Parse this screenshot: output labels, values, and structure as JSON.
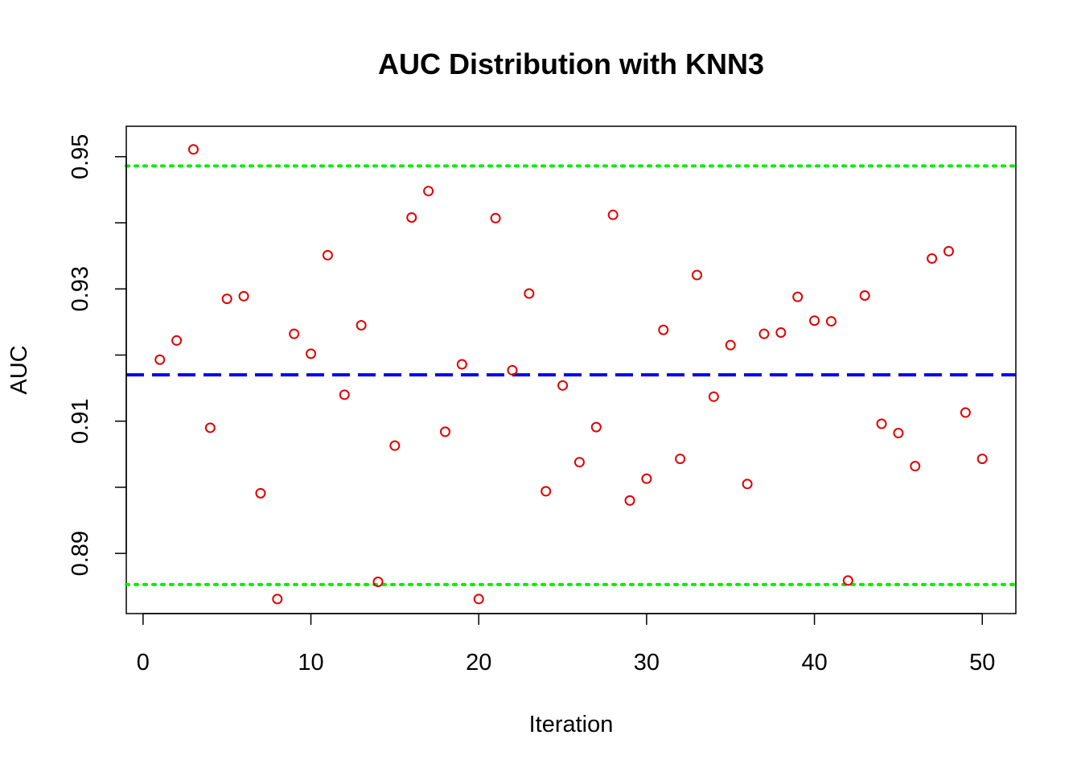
{
  "chart_data": {
    "type": "scatter",
    "title": "AUC Distribution with KNN3",
    "xlabel": "Iteration",
    "ylabel": "AUC",
    "xlim": [
      -1,
      52
    ],
    "ylim": [
      0.8809,
      0.9546
    ],
    "x_ticks": [
      0,
      10,
      20,
      30,
      40,
      50
    ],
    "x_tick_labels": [
      "0",
      "10",
      "20",
      "30",
      "40",
      "50"
    ],
    "y_ticks": [
      0.89,
      0.9,
      0.91,
      0.92,
      0.93,
      0.94,
      0.95
    ],
    "y_tick_labels": [
      "0.89",
      "",
      "0.91",
      "",
      "0.93",
      "",
      "0.95"
    ],
    "grid": false,
    "series": [
      {
        "marker": "open-circle",
        "color": "#e00000",
        "x": [
          1,
          2,
          3,
          4,
          5,
          6,
          7,
          8,
          9,
          10,
          11,
          12,
          13,
          14,
          15,
          16,
          17,
          18,
          19,
          20,
          21,
          22,
          23,
          24,
          25,
          26,
          27,
          28,
          29,
          30,
          31,
          32,
          33,
          34,
          35,
          36,
          37,
          38,
          39,
          40,
          41,
          42,
          43,
          44,
          45,
          46,
          47,
          48,
          49,
          50
        ],
        "y": [
          0.9193,
          0.9222,
          0.9511,
          0.909,
          0.9285,
          0.9289,
          0.8991,
          0.8831,
          0.9232,
          0.9202,
          0.9351,
          0.914,
          0.9245,
          0.8857,
          0.9063,
          0.9408,
          0.9448,
          0.9084,
          0.9186,
          0.8831,
          0.9407,
          0.9177,
          0.9293,
          0.8994,
          0.9154,
          0.9038,
          0.9091,
          0.9412,
          0.898,
          0.9013,
          0.9238,
          0.9043,
          0.9321,
          0.9137,
          0.9215,
          0.9005,
          0.9232,
          0.9234,
          0.9288,
          0.9252,
          0.9251,
          0.8859,
          0.929,
          0.9096,
          0.9082,
          0.9032,
          0.9346,
          0.9357,
          0.9113,
          0.9043
        ]
      }
    ],
    "reference_lines": [
      {
        "kind": "mean",
        "y": 0.917,
        "color": "#0000ee",
        "style": "dashed"
      },
      {
        "kind": "upper",
        "y": 0.9486,
        "color": "#00ee00",
        "style": "dotted"
      },
      {
        "kind": "lower",
        "y": 0.8853,
        "color": "#00ee00",
        "style": "dotted"
      }
    ]
  }
}
